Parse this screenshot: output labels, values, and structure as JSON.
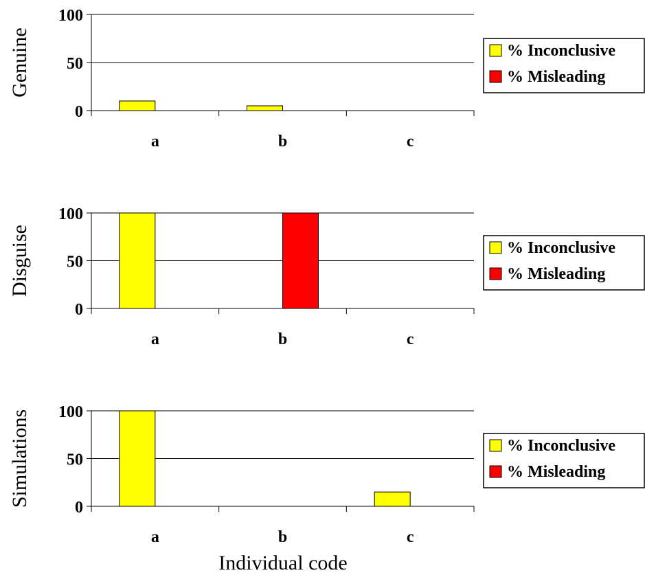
{
  "chart_data": [
    {
      "type": "bar",
      "ylabel": "Genuine",
      "xlabel": "",
      "categories": [
        "a",
        "b",
        "c"
      ],
      "ylim": [
        0,
        100
      ],
      "yticks": [
        0,
        50,
        100
      ],
      "grid": true,
      "legend_position": "right",
      "series": [
        {
          "name": "% Inconclusive",
          "color": "#ffff00",
          "values": [
            10,
            5,
            0
          ]
        },
        {
          "name": "% Misleading",
          "color": "#ff0000",
          "values": [
            0,
            0,
            0
          ]
        }
      ]
    },
    {
      "type": "bar",
      "ylabel": "Disguise",
      "xlabel": "",
      "categories": [
        "a",
        "b",
        "c"
      ],
      "ylim": [
        0,
        100
      ],
      "yticks": [
        0,
        50,
        100
      ],
      "grid": true,
      "legend_position": "right",
      "series": [
        {
          "name": "% Inconclusive",
          "color": "#ffff00",
          "values": [
            100,
            0,
            0
          ]
        },
        {
          "name": "% Misleading",
          "color": "#ff0000",
          "values": [
            0,
            100,
            0
          ]
        }
      ]
    },
    {
      "type": "bar",
      "ylabel": "Simulations",
      "xlabel": "Individual code",
      "categories": [
        "a",
        "b",
        "c"
      ],
      "ylim": [
        0,
        100
      ],
      "yticks": [
        0,
        50,
        100
      ],
      "grid": true,
      "legend_position": "right",
      "series": [
        {
          "name": "% Inconclusive",
          "color": "#ffff00",
          "values": [
            100,
            0,
            15
          ]
        },
        {
          "name": "% Misleading",
          "color": "#ff0000",
          "values": [
            0,
            0,
            0
          ]
        }
      ]
    }
  ]
}
